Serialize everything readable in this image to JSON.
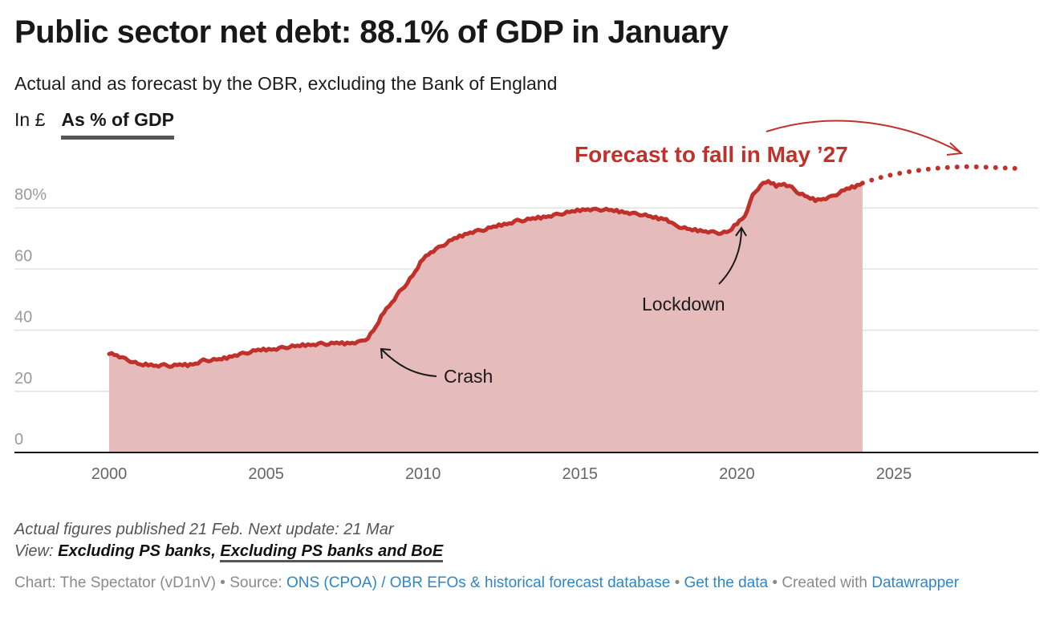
{
  "header": {
    "title": "Public sector net debt: 88.1% of GDP in January",
    "subtitle": "Actual and as forecast by the OBR, excluding the Bank of England",
    "toggles": [
      {
        "label": "In £",
        "active": false
      },
      {
        "label": "As % of GDP",
        "active": true
      }
    ]
  },
  "colors": {
    "line": "#c0312b",
    "area": "#e5bbbb",
    "grid": "#e2e2e2",
    "axis": "#181818",
    "link": "#2e86c8"
  },
  "chart_data": {
    "type": "area",
    "title": "Public sector net debt: 88.1% of GDP in January",
    "xlabel": "",
    "ylabel": "% of GDP",
    "xlim": [
      1999.0,
      2029.4
    ],
    "ylim": [
      0,
      90
    ],
    "grid": true,
    "y_ticks": [
      {
        "value": 0,
        "label": "0"
      },
      {
        "value": 20,
        "label": "20"
      },
      {
        "value": 40,
        "label": "40"
      },
      {
        "value": 60,
        "label": "60"
      },
      {
        "value": 80,
        "label": "80%"
      }
    ],
    "x_ticks": [
      {
        "value": 2000,
        "label": "2000"
      },
      {
        "value": 2005,
        "label": "2005"
      },
      {
        "value": 2010,
        "label": "2010"
      },
      {
        "value": 2015,
        "label": "2015"
      },
      {
        "value": 2020,
        "label": "2020"
      },
      {
        "value": 2025,
        "label": "2025"
      }
    ],
    "series": [
      {
        "name": "Actual",
        "style": "solid-area",
        "x": [
          2000.0,
          2000.25,
          2000.5,
          2000.75,
          2001.0,
          2001.25,
          2001.5,
          2001.75,
          2002.0,
          2002.25,
          2002.5,
          2002.75,
          2003.0,
          2003.25,
          2003.5,
          2003.75,
          2004.0,
          2004.25,
          2004.5,
          2004.75,
          2005.0,
          2005.25,
          2005.5,
          2005.75,
          2006.0,
          2006.25,
          2006.5,
          2006.75,
          2007.0,
          2007.25,
          2007.5,
          2007.75,
          2008.0,
          2008.25,
          2008.5,
          2008.75,
          2009.0,
          2009.25,
          2009.5,
          2009.75,
          2010.0,
          2010.25,
          2010.5,
          2010.75,
          2011.0,
          2011.25,
          2011.5,
          2011.75,
          2012.0,
          2012.25,
          2012.5,
          2012.75,
          2013.0,
          2013.25,
          2013.5,
          2013.75,
          2014.0,
          2014.25,
          2014.5,
          2014.75,
          2015.0,
          2015.25,
          2015.5,
          2015.75,
          2016.0,
          2016.25,
          2016.5,
          2016.75,
          2017.0,
          2017.25,
          2017.5,
          2017.75,
          2018.0,
          2018.25,
          2018.5,
          2018.75,
          2019.0,
          2019.25,
          2019.5,
          2019.75,
          2020.0,
          2020.25,
          2020.5,
          2020.75,
          2021.0,
          2021.25,
          2021.5,
          2021.75,
          2022.0,
          2022.25,
          2022.5,
          2022.75,
          2023.0,
          2023.25,
          2023.5,
          2023.75,
          2024.0
        ],
        "values": [
          32.6,
          31.8,
          30.6,
          29.7,
          28.6,
          28.8,
          28.4,
          28.6,
          28.3,
          28.7,
          28.6,
          29.1,
          30.1,
          30.2,
          30.4,
          31.0,
          31.8,
          32.3,
          32.9,
          33.5,
          33.7,
          33.8,
          34.2,
          34.6,
          34.8,
          35.2,
          35.3,
          35.6,
          35.5,
          35.8,
          35.7,
          35.9,
          36.2,
          37.5,
          41.0,
          46.0,
          49.0,
          52.5,
          55.5,
          59.0,
          63.5,
          65.5,
          67.0,
          68.5,
          70.0,
          71.0,
          72.0,
          72.5,
          73.0,
          73.8,
          74.5,
          75.0,
          75.8,
          76.0,
          76.5,
          76.9,
          77.3,
          77.8,
          78.3,
          78.8,
          79.3,
          79.6,
          79.4,
          79.5,
          79.2,
          78.9,
          78.5,
          78.1,
          77.8,
          77.1,
          76.6,
          76.4,
          74.4,
          73.6,
          72.9,
          72.7,
          72.4,
          72.0,
          71.8,
          72.2,
          75.0,
          77.3,
          84.0,
          87.5,
          88.6,
          87.3,
          87.9,
          86.6,
          84.7,
          83.5,
          82.6,
          83.0,
          83.6,
          84.9,
          86.2,
          87.0,
          88.1
        ]
      },
      {
        "name": "OBR forecast",
        "style": "dotted",
        "x": [
          2024.0,
          2024.5,
          2025.0,
          2025.5,
          2026.0,
          2026.5,
          2027.0,
          2027.33,
          2027.75,
          2028.25,
          2028.75,
          2029.0
        ],
        "values": [
          88.1,
          89.8,
          91.0,
          91.9,
          92.6,
          93.1,
          93.4,
          93.5,
          93.4,
          93.2,
          93.0,
          92.9
        ]
      }
    ],
    "annotations": [
      {
        "text": "Forecast to fall in May ’27",
        "emphasis": true
      },
      {
        "text": "Crash",
        "points_to_x": 2008.75
      },
      {
        "text": "Lockdown",
        "points_to_x": 2020.25
      }
    ]
  },
  "notes": {
    "published": "Actual figures published 21 Feb. Next update: 21 Mar",
    "view_prefix": "View:",
    "views": [
      {
        "label": "Excluding PS banks",
        "active": false
      },
      {
        "label": "Excluding PS banks and BoE",
        "active": true
      }
    ],
    "view_separator": ","
  },
  "footer": {
    "chart_credit": "Chart: The Spectator (vD1nV)",
    "separator": " • ",
    "source_prefix": "Source:",
    "source_link": "ONS (CPOA) / OBR EFOs & historical forecast database",
    "data_link": "Get the data",
    "created_with": "Created with",
    "tool_link": "Datawrapper"
  }
}
